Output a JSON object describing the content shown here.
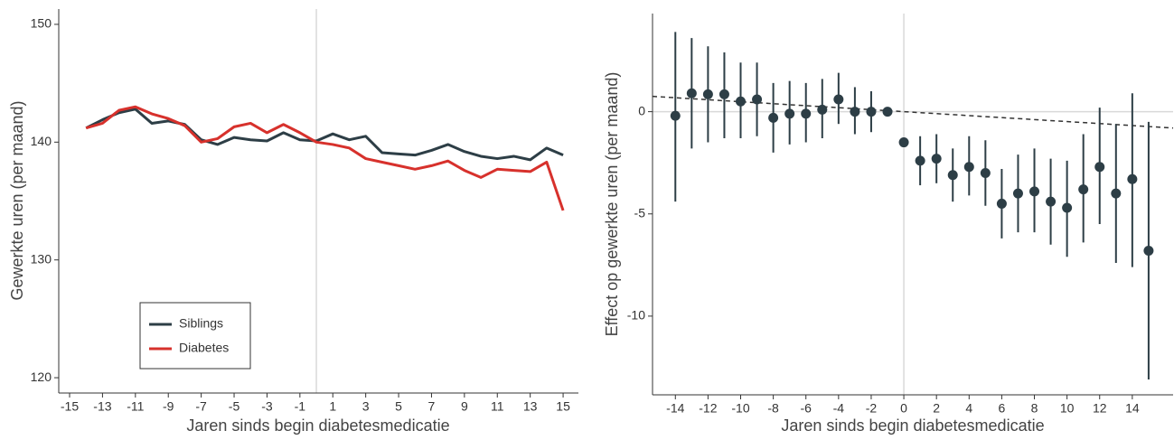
{
  "chart_data": [
    {
      "type": "line",
      "xlabel": "Jaren sinds begin diabetesmedicatie",
      "ylabel": "Gewerkte uren (per maand)",
      "x": [
        -14,
        -13,
        -12,
        -11,
        -10,
        -9,
        -8,
        -7,
        -6,
        -5,
        -4,
        -3,
        -2,
        -1,
        0,
        1,
        2,
        3,
        4,
        5,
        6,
        7,
        8,
        9,
        10,
        11,
        12,
        13,
        14,
        15
      ],
      "series": [
        {
          "name": "Siblings",
          "color": "#2d3e46",
          "values": [
            141.2,
            141.9,
            142.5,
            142.8,
            141.6,
            141.8,
            141.5,
            140.2,
            139.8,
            140.4,
            140.2,
            140.1,
            140.8,
            140.2,
            140.1,
            140.7,
            140.2,
            140.5,
            139.1,
            139.0,
            138.9,
            139.3,
            139.8,
            139.2,
            138.8,
            138.6,
            138.8,
            138.5,
            139.5,
            138.9
          ]
        },
        {
          "name": "Diabetes",
          "color": "#d7312c",
          "values": [
            141.2,
            141.6,
            142.7,
            143.0,
            142.4,
            142.0,
            141.4,
            140.0,
            140.3,
            141.3,
            141.6,
            140.8,
            141.5,
            140.8,
            140.0,
            139.8,
            139.5,
            138.6,
            138.3,
            138.0,
            137.7,
            138.0,
            138.4,
            137.6,
            137.0,
            137.7,
            137.6,
            137.5,
            138.3,
            134.2
          ]
        }
      ],
      "xlim": [
        -15.66,
        15.93
      ],
      "xticks": [
        -15,
        -13,
        -11,
        -9,
        -7,
        -5,
        -3,
        -1,
        1,
        3,
        5,
        7,
        9,
        11,
        13,
        15
      ],
      "ylim": [
        118.7,
        151.3
      ],
      "yticks": [
        120,
        130,
        140,
        150
      ],
      "reference_x": 0,
      "legend": "bottom-left"
    },
    {
      "type": "errorbar",
      "xlabel": "Jaren sinds begin diabetesmedicatie",
      "ylabel": "Effect op gewerkte uren (per maand)",
      "color": "#2d3e46",
      "x": [
        -14,
        -13,
        -12,
        -11,
        -10,
        -9,
        -8,
        -7,
        -6,
        -5,
        -4,
        -3,
        -2,
        -1,
        0,
        1,
        2,
        3,
        4,
        5,
        6,
        7,
        8,
        9,
        10,
        11,
        12,
        13,
        14,
        15
      ],
      "values": [
        -0.2,
        0.9,
        0.85,
        0.85,
        0.5,
        0.6,
        -0.3,
        -0.1,
        -0.1,
        0.1,
        0.6,
        0.0,
        0.0,
        0.0,
        -1.5,
        -2.4,
        -2.3,
        -3.1,
        -2.7,
        -3.0,
        -4.5,
        -4.0,
        -3.9,
        -4.4,
        -4.7,
        -3.8,
        -2.7,
        -4.0,
        -3.3,
        -6.8
      ],
      "upper": [
        3.9,
        3.6,
        3.2,
        2.9,
        2.4,
        2.4,
        1.4,
        1.5,
        1.4,
        1.6,
        1.9,
        1.2,
        1.0,
        null,
        null,
        -1.2,
        -1.1,
        -1.8,
        -1.2,
        -1.4,
        -2.8,
        -2.1,
        -1.8,
        -2.3,
        -2.4,
        -1.1,
        0.2,
        -0.6,
        0.9,
        -0.5
      ],
      "lower": [
        -4.4,
        -1.8,
        -1.5,
        -1.3,
        -1.3,
        -1.2,
        -2.0,
        -1.6,
        -1.5,
        -1.3,
        -0.6,
        -1.1,
        -1.0,
        null,
        null,
        -3.6,
        -3.5,
        -4.4,
        -4.1,
        -4.6,
        -6.2,
        -5.9,
        -5.9,
        -6.5,
        -7.1,
        -6.4,
        -5.5,
        -7.4,
        -7.6,
        -13.1
      ],
      "trend": {
        "x": [
          -15.4,
          16.5
        ],
        "y": [
          0.75,
          -0.8
        ]
      },
      "xlim": [
        -15.4,
        16.5
      ],
      "xticks": [
        -14,
        -12,
        -10,
        -8,
        -6,
        -4,
        -2,
        0,
        2,
        4,
        6,
        8,
        10,
        12,
        14
      ],
      "ylim": [
        -13.85,
        4.8
      ],
      "yticks": [
        -10,
        -5,
        0
      ],
      "reference_x": 0,
      "reference_y": 0
    }
  ]
}
